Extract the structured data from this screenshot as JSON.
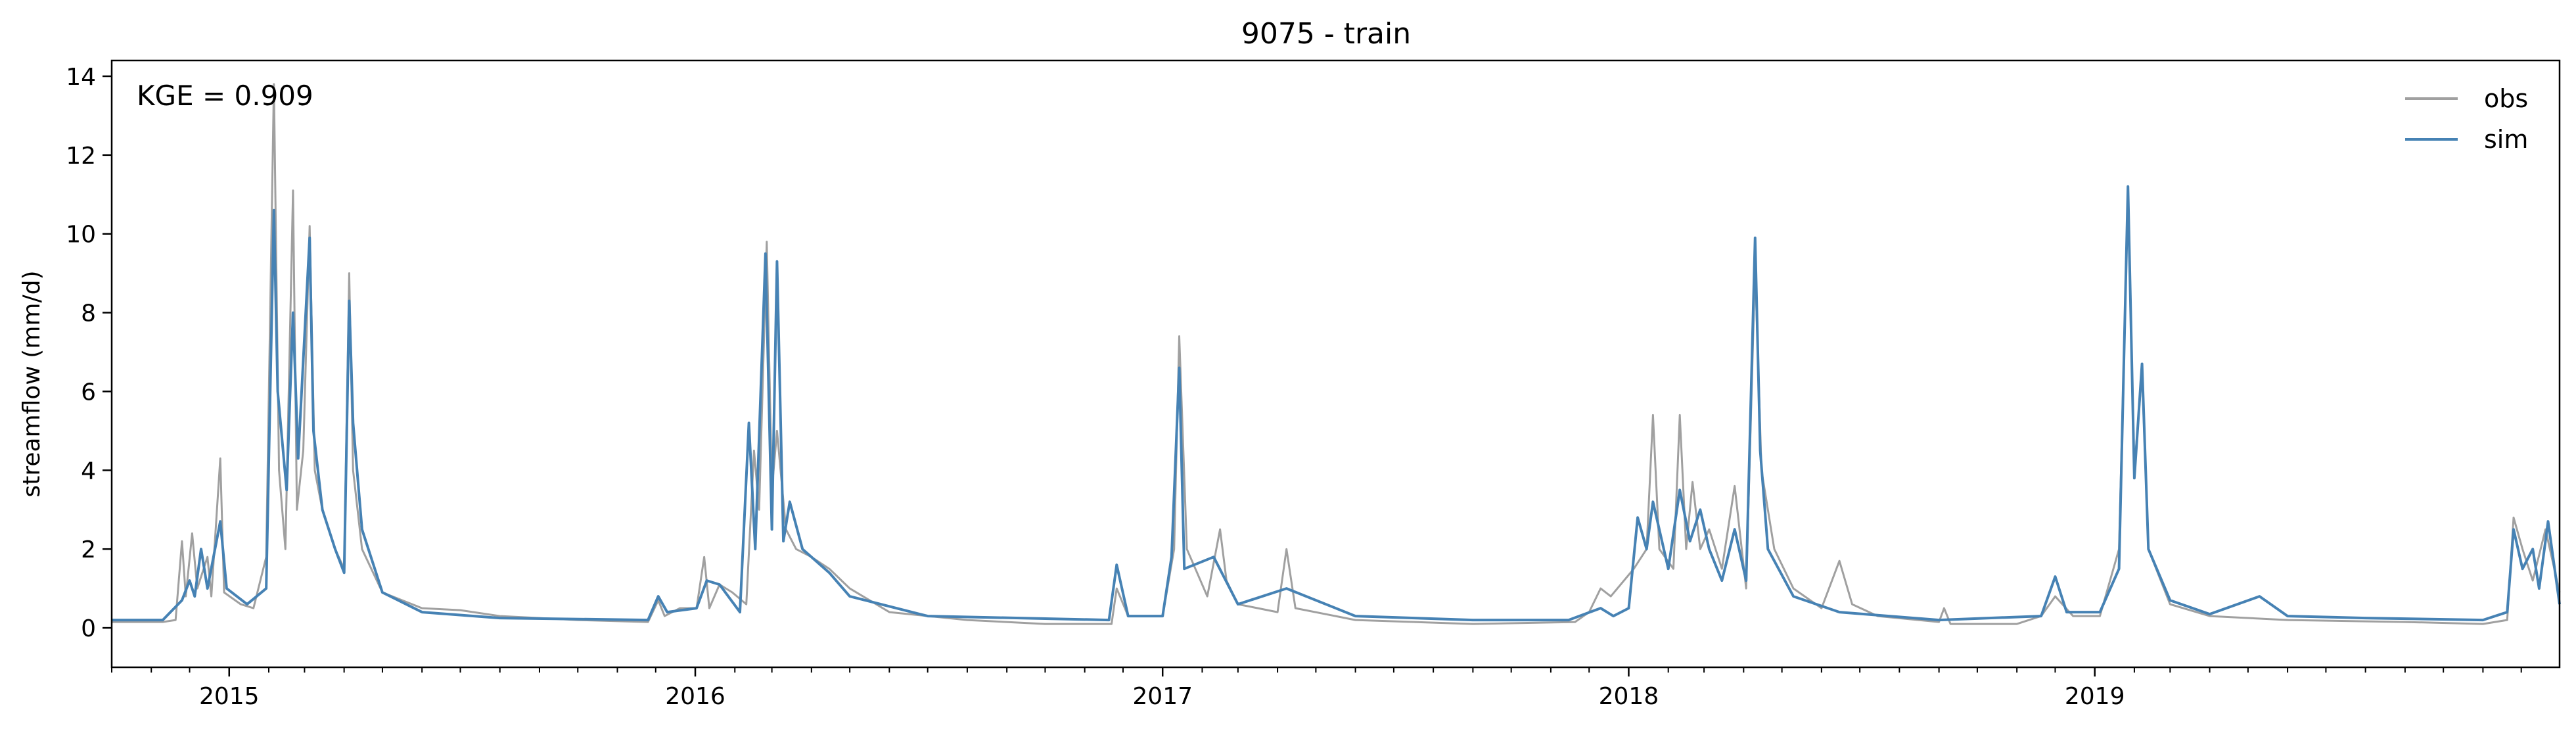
{
  "chart_data": {
    "type": "line",
    "title": "9075 - train",
    "xlabel": "",
    "ylabel": "streamflow (mm/d)",
    "annotation": "KGE = 0.909",
    "xlim": [
      "2014-10-01",
      "2019-12-31"
    ],
    "ylim": [
      -1,
      14.4
    ],
    "yticks": [
      0,
      2,
      4,
      6,
      8,
      10,
      12,
      14
    ],
    "xticks": [
      {
        "label": "2015",
        "date": "2015-01-01"
      },
      {
        "label": "2016",
        "date": "2016-01-01"
      },
      {
        "label": "2017",
        "date": "2017-01-01"
      },
      {
        "label": "2018",
        "date": "2018-01-01"
      },
      {
        "label": "2019",
        "date": "2019-01-01"
      }
    ],
    "grid": false,
    "legend": "top-right",
    "series": [
      {
        "name": "obs",
        "color": "#a0a0a0",
        "points": [
          [
            "2014-10-01",
            0.15
          ],
          [
            "2014-11-10",
            0.15
          ],
          [
            "2014-11-20",
            0.2
          ],
          [
            "2014-11-25",
            2.2
          ],
          [
            "2014-11-28",
            0.8
          ],
          [
            "2014-12-03",
            2.4
          ],
          [
            "2014-12-07",
            1.0
          ],
          [
            "2014-12-15",
            1.8
          ],
          [
            "2014-12-18",
            0.8
          ],
          [
            "2014-12-25",
            4.3
          ],
          [
            "2014-12-28",
            0.9
          ],
          [
            "2015-01-10",
            0.6
          ],
          [
            "2015-01-20",
            0.5
          ],
          [
            "2015-01-30",
            1.8
          ],
          [
            "2015-02-05",
            13.8
          ],
          [
            "2015-02-09",
            4.0
          ],
          [
            "2015-02-14",
            2.0
          ],
          [
            "2015-02-20",
            11.1
          ],
          [
            "2015-02-23",
            3.0
          ],
          [
            "2015-02-28",
            4.5
          ],
          [
            "2015-03-05",
            10.2
          ],
          [
            "2015-03-09",
            4.0
          ],
          [
            "2015-03-15",
            3.0
          ],
          [
            "2015-03-25",
            2.0
          ],
          [
            "2015-04-01",
            1.5
          ],
          [
            "2015-04-05",
            9.0
          ],
          [
            "2015-04-08",
            4.0
          ],
          [
            "2015-04-15",
            2.0
          ],
          [
            "2015-05-01",
            0.9
          ],
          [
            "2015-06-01",
            0.5
          ],
          [
            "2015-07-01",
            0.45
          ],
          [
            "2015-08-01",
            0.3
          ],
          [
            "2015-10-01",
            0.2
          ],
          [
            "2015-11-25",
            0.15
          ],
          [
            "2015-12-03",
            0.7
          ],
          [
            "2015-12-08",
            0.3
          ],
          [
            "2015-12-20",
            0.5
          ],
          [
            "2016-01-02",
            0.5
          ],
          [
            "2016-01-08",
            1.8
          ],
          [
            "2016-01-12",
            0.5
          ],
          [
            "2016-01-20",
            1.1
          ],
          [
            "2016-01-30",
            0.9
          ],
          [
            "2016-02-10",
            0.6
          ],
          [
            "2016-02-16",
            4.5
          ],
          [
            "2016-02-20",
            3.0
          ],
          [
            "2016-02-26",
            9.8
          ],
          [
            "2016-03-01",
            3.5
          ],
          [
            "2016-03-05",
            5.0
          ],
          [
            "2016-03-12",
            2.5
          ],
          [
            "2016-03-20",
            2.0
          ],
          [
            "2016-04-01",
            1.8
          ],
          [
            "2016-04-15",
            1.5
          ],
          [
            "2016-05-01",
            1.0
          ],
          [
            "2016-06-01",
            0.4
          ],
          [
            "2016-08-01",
            0.2
          ],
          [
            "2016-10-01",
            0.1
          ],
          [
            "2016-11-22",
            0.1
          ],
          [
            "2016-11-26",
            1.0
          ],
          [
            "2016-12-05",
            0.3
          ],
          [
            "2017-01-01",
            0.3
          ],
          [
            "2017-01-10",
            2.0
          ],
          [
            "2017-01-14",
            7.4
          ],
          [
            "2017-01-20",
            2.0
          ],
          [
            "2017-02-05",
            0.8
          ],
          [
            "2017-02-15",
            2.5
          ],
          [
            "2017-02-20",
            1.2
          ],
          [
            "2017-03-01",
            0.6
          ],
          [
            "2017-04-01",
            0.4
          ],
          [
            "2017-04-08",
            2.0
          ],
          [
            "2017-04-15",
            0.5
          ],
          [
            "2017-06-01",
            0.2
          ],
          [
            "2017-09-01",
            0.1
          ],
          [
            "2017-11-20",
            0.15
          ],
          [
            "2017-12-01",
            0.4
          ],
          [
            "2017-12-10",
            1.0
          ],
          [
            "2017-12-18",
            0.8
          ],
          [
            "2018-01-05",
            1.5
          ],
          [
            "2018-01-15",
            2.0
          ],
          [
            "2018-01-20",
            5.4
          ],
          [
            "2018-01-25",
            2.0
          ],
          [
            "2018-02-05",
            1.5
          ],
          [
            "2018-02-10",
            5.4
          ],
          [
            "2018-02-15",
            2.0
          ],
          [
            "2018-02-20",
            3.7
          ],
          [
            "2018-02-26",
            2.0
          ],
          [
            "2018-03-05",
            2.5
          ],
          [
            "2018-03-15",
            1.5
          ],
          [
            "2018-03-25",
            3.6
          ],
          [
            "2018-04-03",
            1.0
          ],
          [
            "2018-04-10",
            9.2
          ],
          [
            "2018-04-15",
            4.0
          ],
          [
            "2018-04-25",
            2.0
          ],
          [
            "2018-05-10",
            1.0
          ],
          [
            "2018-06-01",
            0.5
          ],
          [
            "2018-06-15",
            1.7
          ],
          [
            "2018-06-25",
            0.6
          ],
          [
            "2018-07-15",
            0.3
          ],
          [
            "2018-09-01",
            0.15
          ],
          [
            "2018-09-05",
            0.5
          ],
          [
            "2018-09-10",
            0.1
          ],
          [
            "2018-11-01",
            0.1
          ],
          [
            "2018-11-20",
            0.3
          ],
          [
            "2018-12-01",
            0.8
          ],
          [
            "2018-12-15",
            0.3
          ],
          [
            "2019-01-05",
            0.3
          ],
          [
            "2019-01-20",
            2.0
          ],
          [
            "2019-01-27",
            11.0
          ],
          [
            "2019-02-01",
            4.0
          ],
          [
            "2019-02-07",
            6.5
          ],
          [
            "2019-02-12",
            2.0
          ],
          [
            "2019-03-01",
            0.6
          ],
          [
            "2019-04-01",
            0.3
          ],
          [
            "2019-06-01",
            0.2
          ],
          [
            "2019-09-01",
            0.15
          ],
          [
            "2019-11-01",
            0.1
          ],
          [
            "2019-11-20",
            0.2
          ],
          [
            "2019-11-25",
            2.8
          ],
          [
            "2019-12-02",
            2.0
          ],
          [
            "2019-12-10",
            1.2
          ],
          [
            "2019-12-20",
            2.5
          ],
          [
            "2019-12-31",
            0.9
          ]
        ]
      },
      {
        "name": "sim",
        "color": "#4682b4",
        "points": [
          [
            "2014-10-01",
            0.2
          ],
          [
            "2014-11-10",
            0.2
          ],
          [
            "2014-11-25",
            0.7
          ],
          [
            "2014-12-01",
            1.2
          ],
          [
            "2014-12-05",
            0.8
          ],
          [
            "2014-12-10",
            2.0
          ],
          [
            "2014-12-15",
            1.0
          ],
          [
            "2014-12-25",
            2.7
          ],
          [
            "2014-12-30",
            1.0
          ],
          [
            "2015-01-15",
            0.6
          ],
          [
            "2015-01-30",
            1.0
          ],
          [
            "2015-02-05",
            10.6
          ],
          [
            "2015-02-08",
            6.0
          ],
          [
            "2015-02-15",
            3.5
          ],
          [
            "2015-02-20",
            8.0
          ],
          [
            "2015-02-24",
            4.3
          ],
          [
            "2015-03-05",
            9.9
          ],
          [
            "2015-03-08",
            5.0
          ],
          [
            "2015-03-15",
            3.0
          ],
          [
            "2015-03-25",
            2.0
          ],
          [
            "2015-04-01",
            1.4
          ],
          [
            "2015-04-05",
            8.3
          ],
          [
            "2015-04-08",
            5.2
          ],
          [
            "2015-04-15",
            2.5
          ],
          [
            "2015-05-01",
            0.9
          ],
          [
            "2015-06-01",
            0.4
          ],
          [
            "2015-08-01",
            0.25
          ],
          [
            "2015-11-25",
            0.2
          ],
          [
            "2015-12-03",
            0.8
          ],
          [
            "2015-12-10",
            0.4
          ],
          [
            "2016-01-02",
            0.5
          ],
          [
            "2016-01-10",
            1.2
          ],
          [
            "2016-01-20",
            1.1
          ],
          [
            "2016-02-05",
            0.4
          ],
          [
            "2016-02-12",
            5.2
          ],
          [
            "2016-02-17",
            2.0
          ],
          [
            "2016-02-25",
            9.5
          ],
          [
            "2016-03-01",
            2.5
          ],
          [
            "2016-03-05",
            9.3
          ],
          [
            "2016-03-10",
            2.2
          ],
          [
            "2016-03-15",
            3.2
          ],
          [
            "2016-03-25",
            2.0
          ],
          [
            "2016-04-15",
            1.4
          ],
          [
            "2016-05-01",
            0.8
          ],
          [
            "2016-07-01",
            0.3
          ],
          [
            "2016-11-20",
            0.2
          ],
          [
            "2016-11-26",
            1.6
          ],
          [
            "2016-12-05",
            0.3
          ],
          [
            "2017-01-01",
            0.3
          ],
          [
            "2017-01-08",
            1.8
          ],
          [
            "2017-01-14",
            6.6
          ],
          [
            "2017-01-18",
            1.5
          ],
          [
            "2017-02-10",
            1.8
          ],
          [
            "2017-03-01",
            0.6
          ],
          [
            "2017-04-08",
            1.0
          ],
          [
            "2017-06-01",
            0.3
          ],
          [
            "2017-09-01",
            0.2
          ],
          [
            "2017-11-15",
            0.2
          ],
          [
            "2017-12-10",
            0.5
          ],
          [
            "2017-12-20",
            0.3
          ],
          [
            "2018-01-01",
            0.5
          ],
          [
            "2018-01-08",
            2.8
          ],
          [
            "2018-01-15",
            2.0
          ],
          [
            "2018-01-20",
            3.2
          ],
          [
            "2018-02-01",
            1.5
          ],
          [
            "2018-02-10",
            3.5
          ],
          [
            "2018-02-18",
            2.2
          ],
          [
            "2018-02-26",
            3.0
          ],
          [
            "2018-03-05",
            2.0
          ],
          [
            "2018-03-15",
            1.2
          ],
          [
            "2018-03-25",
            2.5
          ],
          [
            "2018-04-03",
            1.2
          ],
          [
            "2018-04-10",
            9.9
          ],
          [
            "2018-04-14",
            4.5
          ],
          [
            "2018-04-20",
            2.0
          ],
          [
            "2018-05-10",
            0.8
          ],
          [
            "2018-06-15",
            0.4
          ],
          [
            "2018-09-01",
            0.2
          ],
          [
            "2018-11-20",
            0.3
          ],
          [
            "2018-12-01",
            1.3
          ],
          [
            "2018-12-10",
            0.4
          ],
          [
            "2019-01-05",
            0.4
          ],
          [
            "2019-01-20",
            1.5
          ],
          [
            "2019-01-27",
            11.2
          ],
          [
            "2019-02-01",
            3.8
          ],
          [
            "2019-02-07",
            6.7
          ],
          [
            "2019-02-12",
            2.0
          ],
          [
            "2019-03-01",
            0.7
          ],
          [
            "2019-04-01",
            0.35
          ],
          [
            "2019-05-10",
            0.8
          ],
          [
            "2019-06-01",
            0.3
          ],
          [
            "2019-08-01",
            0.25
          ],
          [
            "2019-11-01",
            0.2
          ],
          [
            "2019-11-20",
            0.4
          ],
          [
            "2019-11-25",
            2.5
          ],
          [
            "2019-12-02",
            1.5
          ],
          [
            "2019-12-10",
            2.0
          ],
          [
            "2019-12-15",
            1.0
          ],
          [
            "2019-12-22",
            2.7
          ],
          [
            "2019-12-31",
            0.6
          ]
        ]
      }
    ]
  }
}
